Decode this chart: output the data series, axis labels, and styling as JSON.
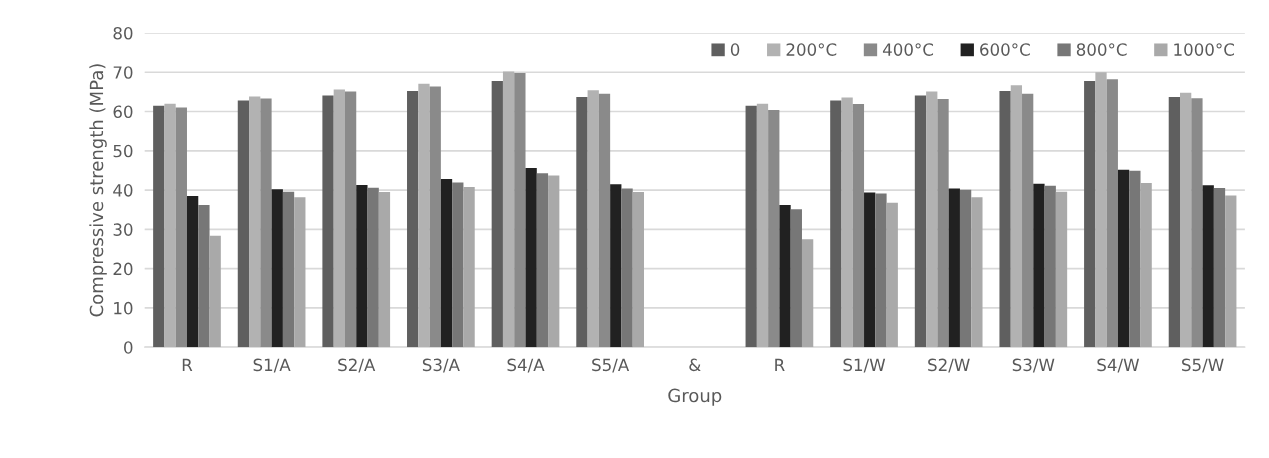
{
  "chart_data": {
    "type": "bar",
    "xlabel": "Group",
    "ylabel": "Compressive strength (MPa)",
    "categories": [
      "R",
      "S1/A",
      "S2/A",
      "S3/A",
      "S4/A",
      "S5/A",
      "&",
      "R",
      "S1/W",
      "S2/W",
      "S3/W",
      "S4/W",
      "S5/W"
    ],
    "series": [
      {
        "name": "0",
        "color": "#5f5f5f",
        "values": [
          61.5,
          62.8,
          64.1,
          65.2,
          67.8,
          63.7,
          null,
          61.5,
          62.8,
          64.1,
          65.2,
          67.8,
          63.7
        ]
      },
      {
        "name": "200°C",
        "color": "#b2b2b2",
        "values": [
          62.0,
          63.8,
          65.6,
          67.1,
          70.2,
          65.4,
          null,
          62.0,
          63.6,
          65.1,
          66.7,
          70.0,
          64.8
        ]
      },
      {
        "name": "400°C",
        "color": "#8a8a8a",
        "values": [
          61.0,
          63.3,
          65.1,
          66.4,
          69.8,
          64.5,
          null,
          60.4,
          61.9,
          63.2,
          64.5,
          68.2,
          63.4
        ]
      },
      {
        "name": "600°C",
        "color": "#212121",
        "values": [
          38.5,
          40.2,
          41.3,
          42.8,
          45.6,
          41.5,
          null,
          36.2,
          39.4,
          40.4,
          41.6,
          45.2,
          41.2
        ]
      },
      {
        "name": "800°C",
        "color": "#777777",
        "values": [
          36.2,
          39.6,
          40.6,
          41.9,
          44.3,
          40.4,
          null,
          35.1,
          39.1,
          40.1,
          41.1,
          44.9,
          40.5
        ]
      },
      {
        "name": "1000°C",
        "color": "#a9a9a9",
        "values": [
          28.4,
          38.2,
          39.5,
          40.8,
          43.7,
          39.5,
          null,
          27.5,
          36.8,
          38.2,
          39.6,
          41.8,
          38.6
        ]
      }
    ],
    "ylim": [
      0,
      80
    ],
    "yticks": [
      0,
      10,
      20,
      30,
      40,
      50,
      60,
      70,
      80
    ],
    "grid": "y",
    "legend": "top right"
  }
}
